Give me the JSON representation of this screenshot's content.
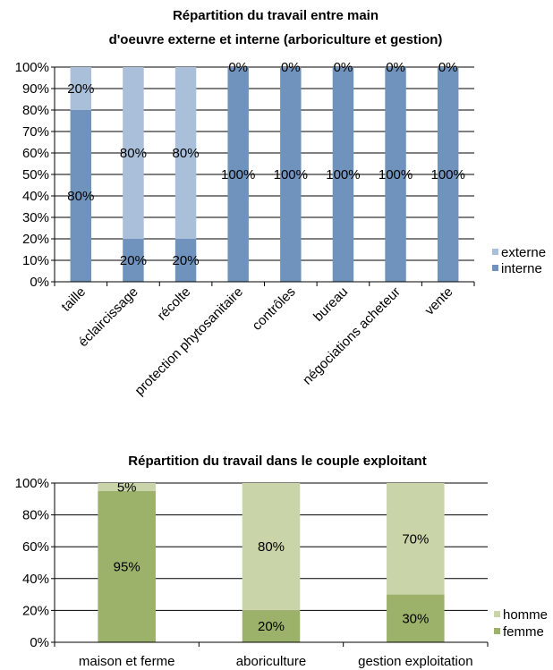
{
  "chart_data": [
    {
      "type": "bar",
      "stacked": true,
      "percent": true,
      "title_lines": [
        "Répartition du travail entre main",
        "d'oeuvre externe et  interne (arboriculture et gestion)"
      ],
      "categories": [
        "taille",
        "éclaircissage",
        "récolte",
        "protection phytosanitaire",
        "contrôles",
        "bureau",
        "négociations acheteur",
        "vente"
      ],
      "series": [
        {
          "name": "interne",
          "values": [
            80,
            20,
            20,
            100,
            100,
            100,
            100,
            100
          ],
          "labels": [
            "80%",
            "20%",
            "20%",
            "100%",
            "100%",
            "100%",
            "100%",
            "100%"
          ]
        },
        {
          "name": "externe",
          "values": [
            20,
            80,
            80,
            0,
            0,
            0,
            0,
            0
          ],
          "labels": [
            "20%",
            "80%",
            "80%",
            "0%",
            "0%",
            "0%",
            "0%",
            "0%"
          ]
        }
      ],
      "y_ticks": [
        "0%",
        "10%",
        "20%",
        "30%",
        "40%",
        "50%",
        "60%",
        "70%",
        "80%",
        "90%",
        "100%"
      ],
      "ylim": [
        0,
        100
      ],
      "grid": true,
      "legend_position": "right",
      "legend_order": [
        "externe",
        "interne"
      ],
      "colors": {
        "interne": "#7093bd",
        "externe": "#a9bfda"
      }
    },
    {
      "type": "bar",
      "stacked": true,
      "percent": true,
      "title_lines": [
        "Répartition du travail dans le couple exploitant"
      ],
      "categories": [
        "maison et ferme",
        "aboriculture",
        "gestion exploitation"
      ],
      "series": [
        {
          "name": "femme",
          "values": [
            95,
            20,
            30
          ],
          "labels": [
            "95%",
            "20%",
            "30%"
          ]
        },
        {
          "name": "homme",
          "values": [
            5,
            80,
            70
          ],
          "labels": [
            "5%",
            "80%",
            "70%"
          ]
        }
      ],
      "y_ticks": [
        "0%",
        "20%",
        "40%",
        "60%",
        "80%",
        "100%"
      ],
      "ylim": [
        0,
        100
      ],
      "grid": true,
      "legend_position": "right",
      "legend_order": [
        "homme",
        "femme"
      ],
      "colors": {
        "femme": "#9cb16a",
        "homme": "#c9d4a8"
      }
    }
  ]
}
